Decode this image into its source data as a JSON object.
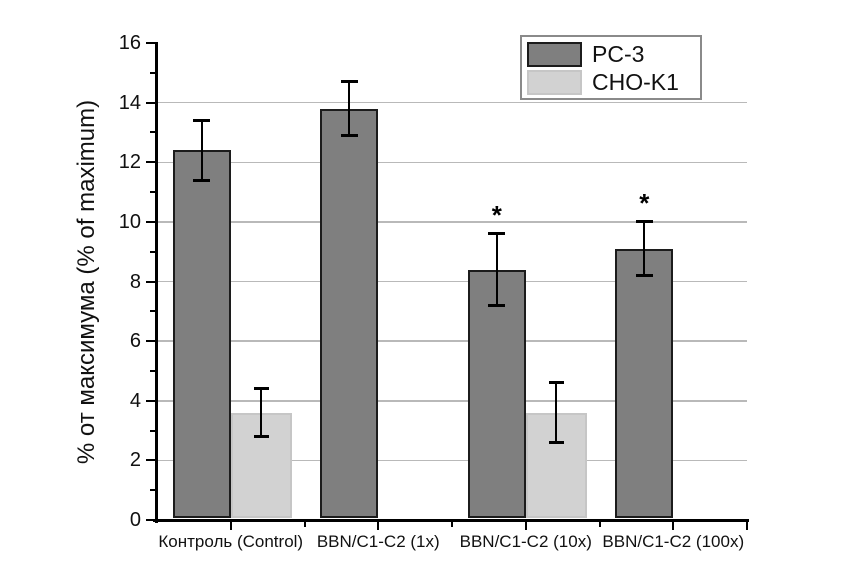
{
  "figure": {
    "background": "#ffffff",
    "text_color": "#111111"
  },
  "chart_data": {
    "type": "bar",
    "title": "",
    "ylabel": "% от максимума (% of maximum)",
    "xlabel": "",
    "categories": [
      "Контроль (Control)",
      "BBN/C1-C2 (1x)",
      "BBN/C1-C2 (10x)",
      "BBN/C1-C2 (100x)"
    ],
    "series": [
      {
        "name": "PC-3",
        "color": "#7f7f7f",
        "border_color": "#1c1c1c",
        "values": [
          12.4,
          13.8,
          8.4,
          9.1
        ],
        "errors": [
          1.0,
          0.9,
          1.2,
          0.9
        ],
        "significance": [
          "",
          "",
          "*",
          "*"
        ]
      },
      {
        "name": "CHO-K1",
        "color": "#d2d2d2",
        "border_color": "#c6c6c6",
        "values": [
          3.6,
          null,
          3.6,
          null
        ],
        "errors": [
          0.8,
          null,
          1.0,
          null
        ],
        "significance": [
          "",
          "",
          "",
          ""
        ]
      }
    ],
    "ylim": [
      0,
      16
    ],
    "ytick_step": 2,
    "yminor_step": 1,
    "ytick_labels": [
      "0",
      "2",
      "4",
      "6",
      "8",
      "10",
      "12",
      "14",
      "16"
    ],
    "grid": "horizontal",
    "gridline_values": [
      2,
      4,
      6,
      8,
      10,
      12,
      14
    ],
    "grid_color": "#b9b9b9",
    "axis_color": "#000000",
    "legend_position": "top-right",
    "legend_entries": [
      "PC-3",
      "CHO-K1"
    ]
  }
}
